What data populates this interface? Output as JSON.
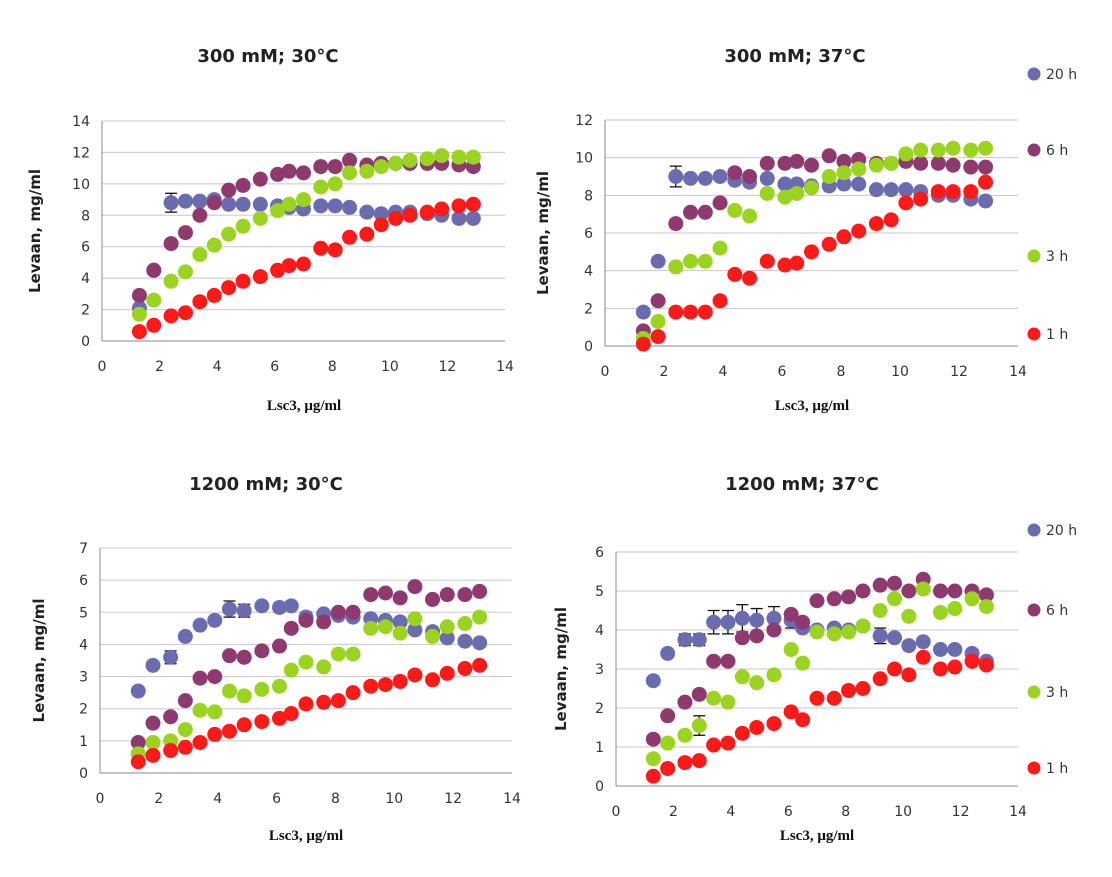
{
  "colors": {
    "20 h": "#6b6bb0",
    "6 h": "#8e3a6f",
    "3 h": "#9ad421",
    "1 h": "#ff1a1a"
  },
  "chart_data": [
    {
      "type": "scatter",
      "title": "300 mM; 30°C",
      "xlabel": "Lsc3, μg/ml",
      "ylabel": "Levaan, mg/ml",
      "xlim": [
        0,
        14
      ],
      "ylim": [
        0,
        14
      ],
      "xticks": [
        0,
        2,
        4,
        6,
        8,
        10,
        12,
        14
      ],
      "yticks": [
        0,
        2,
        4,
        6,
        8,
        10,
        12,
        14
      ],
      "grid": "horizontal",
      "x": [
        1.3,
        1.8,
        2.4,
        2.9,
        3.4,
        3.9,
        4.4,
        4.9,
        5.5,
        6.1,
        6.5,
        7.0,
        7.6,
        8.1,
        8.6,
        9.2,
        9.7,
        10.2,
        10.7,
        11.3,
        11.8,
        12.4,
        12.9
      ],
      "series": [
        {
          "name": "20 h",
          "values": [
            2.1,
            4.5,
            8.8,
            8.9,
            8.9,
            9.0,
            8.7,
            8.7,
            8.7,
            8.6,
            8.5,
            8.4,
            8.6,
            8.6,
            8.5,
            8.2,
            8.1,
            8.2,
            8.2,
            8.1,
            8.0,
            7.8,
            7.8
          ],
          "errors": [
            0,
            0,
            0.6,
            0,
            0,
            0,
            0,
            0,
            0,
            0,
            0,
            0,
            0,
            0,
            0,
            0,
            0,
            0,
            0,
            0,
            0,
            0,
            0
          ]
        },
        {
          "name": "6 h",
          "values": [
            2.9,
            4.5,
            6.2,
            6.9,
            8.0,
            8.8,
            9.6,
            9.9,
            10.3,
            10.6,
            10.8,
            10.7,
            11.1,
            11.1,
            11.5,
            11.2,
            11.3,
            11.3,
            11.3,
            11.3,
            11.3,
            11.2,
            11.1
          ],
          "errors": []
        },
        {
          "name": "3 h",
          "values": [
            1.7,
            2.6,
            3.8,
            4.4,
            5.5,
            6.1,
            6.8,
            7.3,
            7.8,
            8.3,
            8.7,
            9.0,
            9.8,
            10.0,
            10.7,
            10.8,
            11.1,
            11.3,
            11.5,
            11.6,
            11.8,
            11.7,
            11.7
          ],
          "errors": []
        },
        {
          "name": "1 h",
          "values": [
            0.6,
            1.0,
            1.6,
            1.8,
            2.5,
            2.9,
            3.4,
            3.8,
            4.1,
            4.5,
            4.8,
            4.9,
            5.9,
            5.8,
            6.6,
            6.8,
            7.4,
            7.8,
            8.0,
            8.2,
            8.4,
            8.6,
            8.7
          ],
          "errors": []
        }
      ]
    },
    {
      "type": "scatter",
      "title": "300 mM; 37°C",
      "xlabel": "Lsc3, μg/ml",
      "ylabel": "Levaan, mg/ml",
      "xlim": [
        0,
        14
      ],
      "ylim": [
        0,
        12
      ],
      "xticks": [
        0,
        2,
        4,
        6,
        8,
        10,
        12,
        14
      ],
      "yticks": [
        0,
        2,
        4,
        6,
        8,
        10,
        12
      ],
      "grid": "horizontal",
      "x": [
        1.3,
        1.8,
        2.4,
        2.9,
        3.4,
        3.9,
        4.4,
        4.9,
        5.5,
        6.1,
        6.5,
        7.0,
        7.6,
        8.1,
        8.6,
        9.2,
        9.7,
        10.2,
        10.7,
        11.3,
        11.8,
        12.4,
        12.9
      ],
      "series": [
        {
          "name": "20 h",
          "values": [
            1.8,
            4.5,
            9.0,
            8.9,
            8.9,
            9.0,
            8.8,
            8.7,
            8.9,
            8.6,
            8.6,
            8.5,
            8.5,
            8.6,
            8.6,
            8.3,
            8.3,
            8.3,
            8.2,
            8.0,
            8.0,
            7.8,
            7.7
          ],
          "errors": [
            0,
            0,
            0.55,
            0,
            0,
            0,
            0,
            0,
            0,
            0,
            0,
            0,
            0,
            0,
            0,
            0,
            0,
            0,
            0,
            0,
            0,
            0,
            0
          ]
        },
        {
          "name": "6 h",
          "values": [
            0.8,
            2.4,
            6.5,
            7.1,
            7.1,
            7.6,
            9.2,
            9.0,
            9.7,
            9.7,
            9.8,
            9.6,
            10.1,
            9.8,
            9.9,
            9.7,
            9.7,
            9.8,
            9.7,
            9.7,
            9.6,
            9.5,
            9.5
          ],
          "errors": []
        },
        {
          "name": "3 h",
          "values": [
            0.4,
            1.3,
            4.2,
            4.5,
            4.5,
            5.2,
            7.2,
            6.9,
            8.1,
            7.9,
            8.1,
            8.4,
            9.0,
            9.2,
            9.4,
            9.6,
            9.7,
            10.2,
            10.4,
            10.4,
            10.5,
            10.4,
            10.5
          ],
          "errors": []
        },
        {
          "name": "1 h",
          "values": [
            0.1,
            0.5,
            1.8,
            1.8,
            1.8,
            2.4,
            3.8,
            3.6,
            4.5,
            4.3,
            4.4,
            5.0,
            5.4,
            5.8,
            6.1,
            6.5,
            6.7,
            7.6,
            7.8,
            8.2,
            8.2,
            8.2,
            8.7
          ],
          "errors": []
        }
      ]
    },
    {
      "type": "scatter",
      "title": "1200 mM; 30°C",
      "xlabel": "Lsc3, μg/ml",
      "ylabel": "Levaan, mg/ml",
      "xlim": [
        0,
        14
      ],
      "ylim": [
        0,
        7
      ],
      "xticks": [
        0,
        2,
        4,
        6,
        8,
        10,
        12,
        14
      ],
      "yticks": [
        0,
        1,
        2,
        3,
        4,
        5,
        6,
        7
      ],
      "grid": "horizontal",
      "x": [
        1.3,
        1.8,
        2.4,
        2.9,
        3.4,
        3.9,
        4.4,
        4.9,
        5.5,
        6.1,
        6.5,
        7.0,
        7.6,
        8.1,
        8.6,
        9.2,
        9.7,
        10.2,
        10.7,
        11.3,
        11.8,
        12.4,
        12.9
      ],
      "series": [
        {
          "name": "20 h",
          "values": [
            2.55,
            3.35,
            3.6,
            4.25,
            4.6,
            4.75,
            5.1,
            5.05,
            5.2,
            5.15,
            5.2,
            4.85,
            4.95,
            4.9,
            4.85,
            4.8,
            4.75,
            4.7,
            4.45,
            4.4,
            4.2,
            4.1,
            4.05
          ],
          "errors": [
            0,
            0,
            0.2,
            0,
            0,
            0,
            0.25,
            0.2,
            0,
            0,
            0,
            0.15,
            0,
            0,
            0,
            0,
            0,
            0,
            0,
            0,
            0,
            0,
            0
          ]
        },
        {
          "name": "6 h",
          "values": [
            0.95,
            1.55,
            1.75,
            2.25,
            2.95,
            3.0,
            3.65,
            3.6,
            3.8,
            3.95,
            4.5,
            4.75,
            4.7,
            5.0,
            5.0,
            5.55,
            5.6,
            5.45,
            5.8,
            5.4,
            5.55,
            5.55,
            5.65
          ],
          "errors": []
        },
        {
          "name": "3 h",
          "values": [
            0.6,
            0.95,
            1.0,
            1.35,
            1.95,
            1.9,
            2.55,
            2.4,
            2.6,
            2.7,
            3.2,
            3.45,
            3.3,
            3.7,
            3.7,
            4.5,
            4.55,
            4.35,
            4.8,
            4.25,
            4.55,
            4.65,
            4.85
          ],
          "errors": []
        },
        {
          "name": "1 h",
          "values": [
            0.35,
            0.55,
            0.7,
            0.8,
            0.95,
            1.2,
            1.3,
            1.5,
            1.6,
            1.7,
            1.85,
            2.15,
            2.2,
            2.25,
            2.5,
            2.7,
            2.75,
            2.85,
            3.05,
            2.9,
            3.1,
            3.25,
            3.35
          ],
          "errors": []
        }
      ]
    },
    {
      "type": "scatter",
      "title": "1200 mM; 37°C",
      "xlabel": "Lsc3, μg/ml",
      "ylabel": "Levaan, mg/ml",
      "xlim": [
        0,
        14
      ],
      "ylim": [
        0,
        6
      ],
      "xticks": [
        0,
        2,
        4,
        6,
        8,
        10,
        12,
        14
      ],
      "yticks": [
        0,
        1,
        2,
        3,
        4,
        5,
        6
      ],
      "grid": "horizontal",
      "x": [
        1.3,
        1.8,
        2.4,
        2.9,
        3.4,
        3.9,
        4.4,
        4.9,
        5.5,
        6.1,
        6.5,
        7.0,
        7.6,
        8.1,
        8.6,
        9.2,
        9.7,
        10.2,
        10.7,
        11.3,
        11.8,
        12.4,
        12.9
      ],
      "series": [
        {
          "name": "20 h",
          "values": [
            2.7,
            3.4,
            3.75,
            3.75,
            4.2,
            4.2,
            4.3,
            4.25,
            4.3,
            4.25,
            4.05,
            4.0,
            4.05,
            4.0,
            4.1,
            3.85,
            3.8,
            3.6,
            3.7,
            3.5,
            3.5,
            3.4,
            3.2
          ],
          "errors": [
            0,
            0,
            0.15,
            0.15,
            0.3,
            0.3,
            0.35,
            0.3,
            0.3,
            0.2,
            0,
            0,
            0,
            0,
            0,
            0.2,
            0,
            0,
            0,
            0,
            0,
            0,
            0
          ]
        },
        {
          "name": "6 h",
          "values": [
            1.2,
            1.8,
            2.15,
            2.35,
            3.2,
            3.2,
            3.8,
            3.85,
            4.0,
            4.4,
            4.2,
            4.75,
            4.8,
            4.85,
            5.0,
            5.15,
            5.2,
            5.0,
            5.3,
            5.0,
            5.0,
            5.0,
            4.9
          ],
          "errors": []
        },
        {
          "name": "3 h",
          "values": [
            0.7,
            1.1,
            1.3,
            1.55,
            2.25,
            2.15,
            2.8,
            2.65,
            2.85,
            3.5,
            3.15,
            3.95,
            3.9,
            3.95,
            4.1,
            4.5,
            4.8,
            4.35,
            5.05,
            4.45,
            4.55,
            4.8,
            4.6
          ],
          "errors": [
            0,
            0,
            0,
            0.25,
            0,
            0,
            0,
            0,
            0,
            0,
            0,
            0,
            0,
            0,
            0,
            0,
            0,
            0,
            0,
            0,
            0,
            0,
            0
          ]
        },
        {
          "name": "1 h",
          "values": [
            0.25,
            0.45,
            0.6,
            0.65,
            1.05,
            1.1,
            1.35,
            1.5,
            1.6,
            1.9,
            1.7,
            2.25,
            2.25,
            2.45,
            2.5,
            2.75,
            3.0,
            2.85,
            3.3,
            3.0,
            3.05,
            3.2,
            3.1
          ],
          "errors": []
        }
      ]
    }
  ],
  "legends": [
    {
      "items": [
        "20 h",
        "6 h",
        "3 h",
        "1 h"
      ]
    },
    {
      "items": [
        "20 h",
        "6 h",
        "3 h",
        "1 h"
      ]
    }
  ]
}
